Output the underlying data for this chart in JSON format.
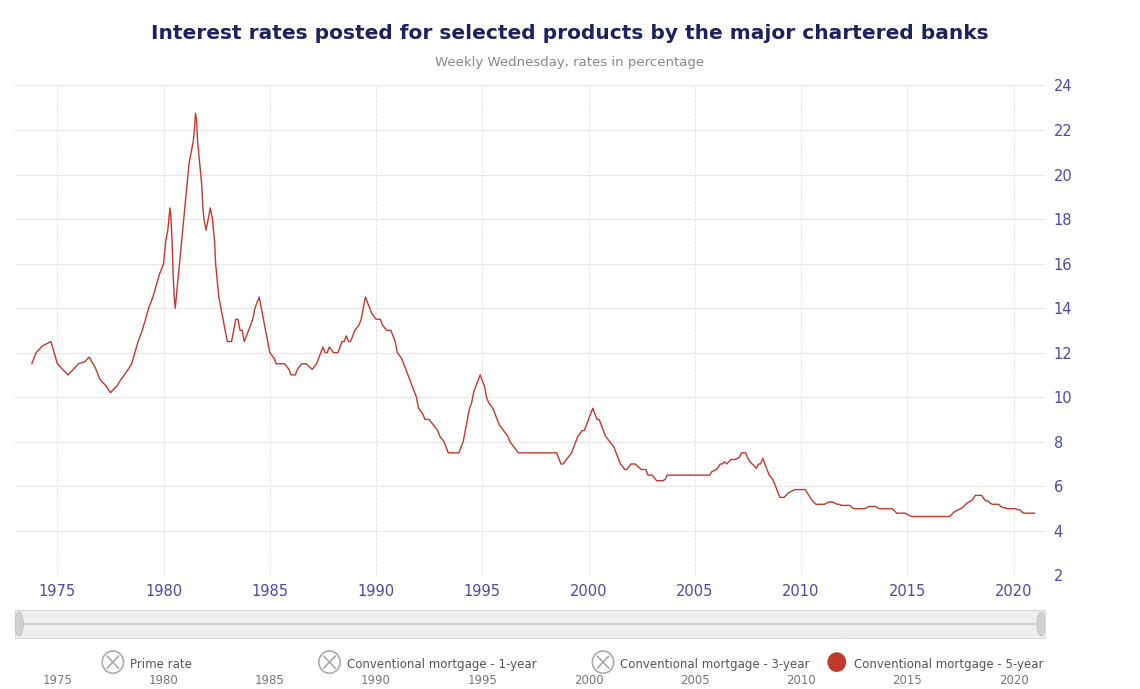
{
  "title": "Interest rates posted for selected products by the major chartered banks",
  "subtitle": "Weekly Wednesday, rates in percentage",
  "title_color": "#1e2060",
  "subtitle_color": "#888888",
  "line_color": "#c0392b",
  "background_color": "#ffffff",
  "plot_bg_color": "#ffffff",
  "grid_color": "#e8e8e8",
  "axis_label_color": "#4a4aaa",
  "tick_label_color": "#4a4aaa",
  "scrollbar_bg": "#eeeeee",
  "scrollbar_line_color": "#cccccc",
  "scrollbar_handle_color": "#d0d0d0",
  "ylim": [
    2,
    24
  ],
  "yticks": [
    2,
    4,
    6,
    8,
    10,
    12,
    14,
    16,
    18,
    20,
    22,
    24
  ],
  "xlim_start": 1973.0,
  "xlim_end": 2021.5,
  "xticks": [
    1975,
    1980,
    1985,
    1990,
    1995,
    2000,
    2005,
    2010,
    2015,
    2020
  ],
  "legend_items": [
    {
      "label": "Prime rate",
      "type": "x",
      "color": "#aaaaaa"
    },
    {
      "label": "Conventional mortgage - 1-year",
      "type": "x",
      "color": "#aaaaaa"
    },
    {
      "label": "Conventional mortgage - 3-year",
      "type": "x",
      "color": "#aaaaaa"
    },
    {
      "label": "Conventional mortgage - 5-year",
      "type": "dot",
      "color": "#c0392b"
    }
  ],
  "data": [
    [
      1973.8,
      11.5
    ],
    [
      1974.0,
      12.0
    ],
    [
      1974.3,
      12.3
    ],
    [
      1974.7,
      12.5
    ],
    [
      1975.0,
      11.5
    ],
    [
      1975.3,
      11.2
    ],
    [
      1975.5,
      11.0
    ],
    [
      1975.8,
      11.3
    ],
    [
      1976.0,
      11.5
    ],
    [
      1976.3,
      11.6
    ],
    [
      1976.5,
      11.8
    ],
    [
      1976.8,
      11.3
    ],
    [
      1977.0,
      10.8
    ],
    [
      1977.3,
      10.5
    ],
    [
      1977.5,
      10.2
    ],
    [
      1977.8,
      10.5
    ],
    [
      1978.0,
      10.8
    ],
    [
      1978.3,
      11.2
    ],
    [
      1978.5,
      11.5
    ],
    [
      1978.8,
      12.5
    ],
    [
      1979.0,
      13.0
    ],
    [
      1979.3,
      14.0
    ],
    [
      1979.5,
      14.5
    ],
    [
      1979.8,
      15.5
    ],
    [
      1980.0,
      16.0
    ],
    [
      1980.1,
      17.0
    ],
    [
      1980.2,
      17.5
    ],
    [
      1980.3,
      18.5
    ],
    [
      1980.35,
      18.0
    ],
    [
      1980.4,
      17.0
    ],
    [
      1980.45,
      15.5
    ],
    [
      1980.5,
      14.5
    ],
    [
      1980.55,
      14.0
    ],
    [
      1980.6,
      14.5
    ],
    [
      1980.7,
      15.5
    ],
    [
      1980.8,
      16.5
    ],
    [
      1980.9,
      17.5
    ],
    [
      1981.0,
      18.5
    ],
    [
      1981.1,
      19.5
    ],
    [
      1981.2,
      20.5
    ],
    [
      1981.3,
      21.0
    ],
    [
      1981.4,
      21.5
    ],
    [
      1981.45,
      22.0
    ],
    [
      1981.5,
      22.75
    ],
    [
      1981.55,
      22.5
    ],
    [
      1981.6,
      21.5
    ],
    [
      1981.7,
      20.5
    ],
    [
      1981.8,
      19.5
    ],
    [
      1981.85,
      18.5
    ],
    [
      1981.9,
      18.0
    ],
    [
      1982.0,
      17.5
    ],
    [
      1982.1,
      18.0
    ],
    [
      1982.2,
      18.5
    ],
    [
      1982.3,
      18.0
    ],
    [
      1982.4,
      17.0
    ],
    [
      1982.45,
      16.0
    ],
    [
      1982.5,
      15.5
    ],
    [
      1982.6,
      14.5
    ],
    [
      1982.7,
      14.0
    ],
    [
      1982.8,
      13.5
    ],
    [
      1982.9,
      13.0
    ],
    [
      1983.0,
      12.5
    ],
    [
      1983.2,
      12.5
    ],
    [
      1983.3,
      13.0
    ],
    [
      1983.4,
      13.5
    ],
    [
      1983.5,
      13.5
    ],
    [
      1983.6,
      13.0
    ],
    [
      1983.7,
      13.0
    ],
    [
      1983.8,
      12.5
    ],
    [
      1984.0,
      13.0
    ],
    [
      1984.2,
      13.5
    ],
    [
      1984.3,
      14.0
    ],
    [
      1984.4,
      14.25
    ],
    [
      1984.5,
      14.5
    ],
    [
      1984.6,
      14.0
    ],
    [
      1984.7,
      13.5
    ],
    [
      1984.8,
      13.0
    ],
    [
      1984.9,
      12.5
    ],
    [
      1985.0,
      12.0
    ],
    [
      1985.2,
      11.75
    ],
    [
      1985.3,
      11.5
    ],
    [
      1985.5,
      11.5
    ],
    [
      1985.7,
      11.5
    ],
    [
      1985.9,
      11.25
    ],
    [
      1986.0,
      11.0
    ],
    [
      1986.2,
      11.0
    ],
    [
      1986.3,
      11.25
    ],
    [
      1986.5,
      11.5
    ],
    [
      1986.7,
      11.5
    ],
    [
      1987.0,
      11.25
    ],
    [
      1987.2,
      11.5
    ],
    [
      1987.3,
      11.75
    ],
    [
      1987.4,
      12.0
    ],
    [
      1987.5,
      12.25
    ],
    [
      1987.6,
      12.0
    ],
    [
      1987.7,
      12.0
    ],
    [
      1987.8,
      12.25
    ],
    [
      1988.0,
      12.0
    ],
    [
      1988.2,
      12.0
    ],
    [
      1988.3,
      12.25
    ],
    [
      1988.4,
      12.5
    ],
    [
      1988.5,
      12.5
    ],
    [
      1988.6,
      12.75
    ],
    [
      1988.7,
      12.5
    ],
    [
      1988.8,
      12.5
    ],
    [
      1989.0,
      13.0
    ],
    [
      1989.2,
      13.25
    ],
    [
      1989.3,
      13.5
    ],
    [
      1989.4,
      14.0
    ],
    [
      1989.5,
      14.5
    ],
    [
      1989.6,
      14.25
    ],
    [
      1989.7,
      14.0
    ],
    [
      1989.8,
      13.75
    ],
    [
      1990.0,
      13.5
    ],
    [
      1990.2,
      13.5
    ],
    [
      1990.3,
      13.25
    ],
    [
      1990.5,
      13.0
    ],
    [
      1990.7,
      13.0
    ],
    [
      1990.9,
      12.5
    ],
    [
      1991.0,
      12.0
    ],
    [
      1991.2,
      11.75
    ],
    [
      1991.3,
      11.5
    ],
    [
      1991.5,
      11.0
    ],
    [
      1991.7,
      10.5
    ],
    [
      1991.9,
      10.0
    ],
    [
      1992.0,
      9.5
    ],
    [
      1992.2,
      9.25
    ],
    [
      1992.3,
      9.0
    ],
    [
      1992.5,
      9.0
    ],
    [
      1992.7,
      8.75
    ],
    [
      1992.9,
      8.5
    ],
    [
      1993.0,
      8.25
    ],
    [
      1993.2,
      8.0
    ],
    [
      1993.3,
      7.75
    ],
    [
      1993.4,
      7.5
    ],
    [
      1993.5,
      7.5
    ],
    [
      1993.7,
      7.5
    ],
    [
      1993.9,
      7.5
    ],
    [
      1994.0,
      7.75
    ],
    [
      1994.1,
      8.0
    ],
    [
      1994.2,
      8.5
    ],
    [
      1994.3,
      9.0
    ],
    [
      1994.4,
      9.5
    ],
    [
      1994.5,
      9.75
    ],
    [
      1994.6,
      10.25
    ],
    [
      1994.7,
      10.5
    ],
    [
      1994.8,
      10.75
    ],
    [
      1994.9,
      11.0
    ],
    [
      1995.0,
      10.75
    ],
    [
      1995.1,
      10.5
    ],
    [
      1995.2,
      10.0
    ],
    [
      1995.3,
      9.75
    ],
    [
      1995.5,
      9.5
    ],
    [
      1995.6,
      9.25
    ],
    [
      1995.7,
      9.0
    ],
    [
      1995.8,
      8.75
    ],
    [
      1996.0,
      8.5
    ],
    [
      1996.2,
      8.25
    ],
    [
      1996.3,
      8.0
    ],
    [
      1996.5,
      7.75
    ],
    [
      1996.7,
      7.5
    ],
    [
      1996.9,
      7.5
    ],
    [
      1997.0,
      7.5
    ],
    [
      1997.2,
      7.5
    ],
    [
      1997.3,
      7.5
    ],
    [
      1997.5,
      7.5
    ],
    [
      1997.7,
      7.5
    ],
    [
      1997.9,
      7.5
    ],
    [
      1998.0,
      7.5
    ],
    [
      1998.2,
      7.5
    ],
    [
      1998.3,
      7.5
    ],
    [
      1998.5,
      7.5
    ],
    [
      1998.6,
      7.25
    ],
    [
      1998.7,
      7.0
    ],
    [
      1998.8,
      7.0
    ],
    [
      1999.0,
      7.25
    ],
    [
      1999.2,
      7.5
    ],
    [
      1999.3,
      7.75
    ],
    [
      1999.4,
      8.0
    ],
    [
      1999.5,
      8.25
    ],
    [
      1999.7,
      8.5
    ],
    [
      1999.8,
      8.5
    ],
    [
      2000.0,
      9.0
    ],
    [
      2000.1,
      9.25
    ],
    [
      2000.2,
      9.5
    ],
    [
      2000.3,
      9.25
    ],
    [
      2000.4,
      9.0
    ],
    [
      2000.5,
      9.0
    ],
    [
      2000.6,
      8.75
    ],
    [
      2000.7,
      8.5
    ],
    [
      2000.8,
      8.25
    ],
    [
      2001.0,
      8.0
    ],
    [
      2001.2,
      7.75
    ],
    [
      2001.3,
      7.5
    ],
    [
      2001.4,
      7.25
    ],
    [
      2001.5,
      7.0
    ],
    [
      2001.6,
      6.9
    ],
    [
      2001.7,
      6.75
    ],
    [
      2001.8,
      6.75
    ],
    [
      2002.0,
      7.0
    ],
    [
      2002.2,
      7.0
    ],
    [
      2002.3,
      6.9
    ],
    [
      2002.5,
      6.75
    ],
    [
      2002.6,
      6.75
    ],
    [
      2002.7,
      6.75
    ],
    [
      2002.8,
      6.5
    ],
    [
      2003.0,
      6.5
    ],
    [
      2003.2,
      6.25
    ],
    [
      2003.3,
      6.25
    ],
    [
      2003.5,
      6.25
    ],
    [
      2003.6,
      6.3
    ],
    [
      2003.7,
      6.5
    ],
    [
      2003.8,
      6.5
    ],
    [
      2004.0,
      6.5
    ],
    [
      2004.2,
      6.5
    ],
    [
      2004.4,
      6.5
    ],
    [
      2004.5,
      6.5
    ],
    [
      2004.6,
      6.5
    ],
    [
      2004.7,
      6.5
    ],
    [
      2004.8,
      6.5
    ],
    [
      2005.0,
      6.5
    ],
    [
      2005.2,
      6.5
    ],
    [
      2005.3,
      6.5
    ],
    [
      2005.4,
      6.5
    ],
    [
      2005.5,
      6.5
    ],
    [
      2005.6,
      6.5
    ],
    [
      2005.7,
      6.5
    ],
    [
      2005.8,
      6.65
    ],
    [
      2006.0,
      6.75
    ],
    [
      2006.1,
      6.85
    ],
    [
      2006.2,
      7.0
    ],
    [
      2006.3,
      7.0
    ],
    [
      2006.4,
      7.1
    ],
    [
      2006.5,
      7.0
    ],
    [
      2006.6,
      7.1
    ],
    [
      2006.7,
      7.2
    ],
    [
      2006.8,
      7.2
    ],
    [
      2006.9,
      7.2
    ],
    [
      2007.0,
      7.25
    ],
    [
      2007.1,
      7.3
    ],
    [
      2007.2,
      7.5
    ],
    [
      2007.3,
      7.5
    ],
    [
      2007.4,
      7.5
    ],
    [
      2007.5,
      7.25
    ],
    [
      2007.6,
      7.1
    ],
    [
      2007.7,
      7.0
    ],
    [
      2007.8,
      6.9
    ],
    [
      2007.9,
      6.8
    ],
    [
      2008.0,
      7.0
    ],
    [
      2008.1,
      7.0
    ],
    [
      2008.2,
      7.25
    ],
    [
      2008.3,
      7.0
    ],
    [
      2008.4,
      6.75
    ],
    [
      2008.5,
      6.5
    ],
    [
      2008.6,
      6.4
    ],
    [
      2008.7,
      6.25
    ],
    [
      2008.8,
      6.0
    ],
    [
      2008.9,
      5.75
    ],
    [
      2009.0,
      5.5
    ],
    [
      2009.1,
      5.5
    ],
    [
      2009.2,
      5.5
    ],
    [
      2009.3,
      5.6
    ],
    [
      2009.4,
      5.7
    ],
    [
      2009.5,
      5.75
    ],
    [
      2009.6,
      5.8
    ],
    [
      2009.7,
      5.85
    ],
    [
      2009.8,
      5.85
    ],
    [
      2009.9,
      5.85
    ],
    [
      2010.0,
      5.85
    ],
    [
      2010.1,
      5.85
    ],
    [
      2010.2,
      5.85
    ],
    [
      2010.3,
      5.7
    ],
    [
      2010.4,
      5.55
    ],
    [
      2010.5,
      5.39
    ],
    [
      2010.6,
      5.29
    ],
    [
      2010.7,
      5.19
    ],
    [
      2010.8,
      5.19
    ],
    [
      2010.9,
      5.19
    ],
    [
      2011.0,
      5.19
    ],
    [
      2011.1,
      5.19
    ],
    [
      2011.2,
      5.24
    ],
    [
      2011.3,
      5.29
    ],
    [
      2011.4,
      5.29
    ],
    [
      2011.5,
      5.29
    ],
    [
      2011.6,
      5.24
    ],
    [
      2011.7,
      5.19
    ],
    [
      2011.8,
      5.19
    ],
    [
      2011.9,
      5.14
    ],
    [
      2012.0,
      5.14
    ],
    [
      2012.1,
      5.14
    ],
    [
      2012.2,
      5.14
    ],
    [
      2012.3,
      5.14
    ],
    [
      2012.4,
      5.04
    ],
    [
      2012.5,
      4.99
    ],
    [
      2012.6,
      4.99
    ],
    [
      2012.7,
      4.99
    ],
    [
      2012.8,
      4.99
    ],
    [
      2012.9,
      4.99
    ],
    [
      2013.0,
      4.99
    ],
    [
      2013.1,
      5.04
    ],
    [
      2013.2,
      5.09
    ],
    [
      2013.3,
      5.09
    ],
    [
      2013.4,
      5.09
    ],
    [
      2013.5,
      5.09
    ],
    [
      2013.6,
      5.04
    ],
    [
      2013.7,
      4.99
    ],
    [
      2013.8,
      4.99
    ],
    [
      2013.9,
      4.99
    ],
    [
      2014.0,
      4.99
    ],
    [
      2014.1,
      4.99
    ],
    [
      2014.2,
      4.99
    ],
    [
      2014.3,
      4.99
    ],
    [
      2014.4,
      4.89
    ],
    [
      2014.5,
      4.79
    ],
    [
      2014.6,
      4.79
    ],
    [
      2014.7,
      4.79
    ],
    [
      2014.8,
      4.79
    ],
    [
      2014.9,
      4.79
    ],
    [
      2015.0,
      4.74
    ],
    [
      2015.1,
      4.69
    ],
    [
      2015.2,
      4.64
    ],
    [
      2015.3,
      4.64
    ],
    [
      2015.4,
      4.64
    ],
    [
      2015.5,
      4.64
    ],
    [
      2015.6,
      4.64
    ],
    [
      2015.7,
      4.64
    ],
    [
      2015.8,
      4.64
    ],
    [
      2015.9,
      4.64
    ],
    [
      2016.0,
      4.64
    ],
    [
      2016.1,
      4.64
    ],
    [
      2016.2,
      4.64
    ],
    [
      2016.3,
      4.64
    ],
    [
      2016.4,
      4.64
    ],
    [
      2016.5,
      4.64
    ],
    [
      2016.6,
      4.64
    ],
    [
      2016.7,
      4.64
    ],
    [
      2016.8,
      4.64
    ],
    [
      2016.9,
      4.64
    ],
    [
      2017.0,
      4.64
    ],
    [
      2017.1,
      4.74
    ],
    [
      2017.2,
      4.84
    ],
    [
      2017.3,
      4.89
    ],
    [
      2017.4,
      4.94
    ],
    [
      2017.5,
      4.99
    ],
    [
      2017.6,
      5.04
    ],
    [
      2017.7,
      5.14
    ],
    [
      2017.8,
      5.24
    ],
    [
      2017.9,
      5.29
    ],
    [
      2018.0,
      5.34
    ],
    [
      2018.1,
      5.44
    ],
    [
      2018.2,
      5.59
    ],
    [
      2018.3,
      5.59
    ],
    [
      2018.4,
      5.59
    ],
    [
      2018.5,
      5.59
    ],
    [
      2018.6,
      5.44
    ],
    [
      2018.7,
      5.34
    ],
    [
      2018.8,
      5.34
    ],
    [
      2018.9,
      5.24
    ],
    [
      2019.0,
      5.19
    ],
    [
      2019.1,
      5.19
    ],
    [
      2019.2,
      5.19
    ],
    [
      2019.3,
      5.19
    ],
    [
      2019.4,
      5.09
    ],
    [
      2019.5,
      5.04
    ],
    [
      2019.6,
      5.04
    ],
    [
      2019.7,
      4.99
    ],
    [
      2019.8,
      4.99
    ],
    [
      2019.9,
      4.99
    ],
    [
      2020.0,
      4.99
    ],
    [
      2020.1,
      4.99
    ],
    [
      2020.2,
      4.94
    ],
    [
      2020.3,
      4.94
    ],
    [
      2020.4,
      4.84
    ],
    [
      2020.5,
      4.79
    ],
    [
      2020.6,
      4.79
    ],
    [
      2020.7,
      4.79
    ],
    [
      2020.8,
      4.79
    ],
    [
      2020.9,
      4.79
    ],
    [
      2021.0,
      4.79
    ]
  ]
}
